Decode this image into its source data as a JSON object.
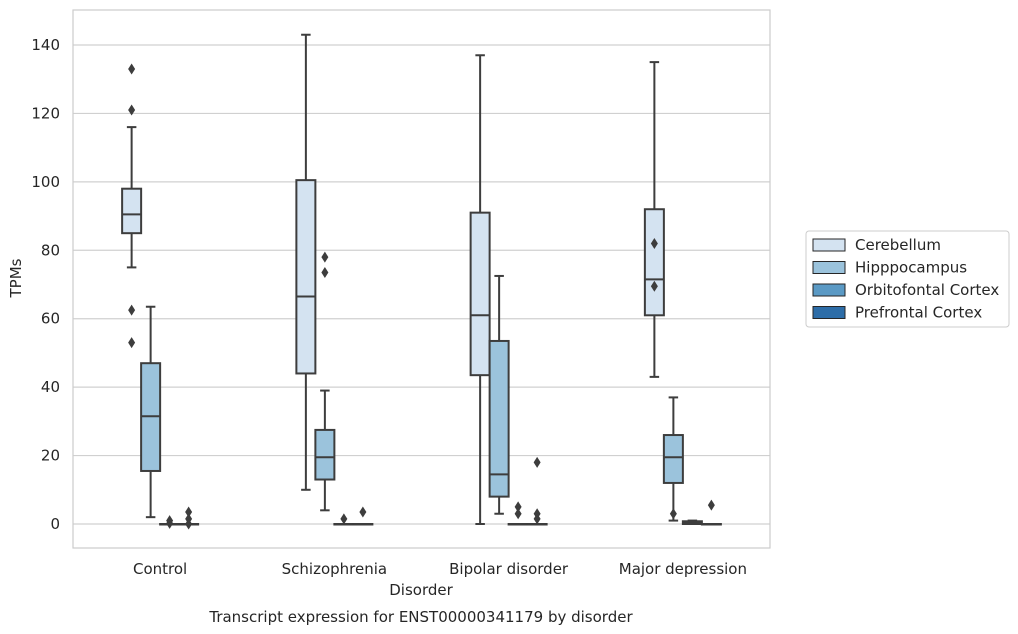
{
  "chart_data": {
    "type": "box",
    "title": "Transcript expression for ENST00000341179 by disorder",
    "xlabel": "Disorder",
    "ylabel": "TPMs",
    "categories": [
      "Control",
      "Schizophrenia",
      "Bipolar disorder",
      "Major depression"
    ],
    "ylim": [
      -7,
      151
    ],
    "yticks": [
      0,
      20,
      40,
      60,
      80,
      100,
      120,
      140
    ],
    "grid": "horizontal",
    "legend_position": "right",
    "series": [
      {
        "name": "Cerebellum",
        "color": "#d4e3f1",
        "boxes": [
          {
            "whislo": 75,
            "q1": 85,
            "med": 90.5,
            "q3": 98,
            "whishi": 116,
            "fliers": [
              121,
              133,
              62.5,
              53
            ]
          },
          {
            "whislo": 10,
            "q1": 44,
            "med": 66.5,
            "q3": 100.5,
            "whishi": 143,
            "fliers": []
          },
          {
            "whislo": 0,
            "q1": 43.5,
            "med": 61,
            "q3": 91,
            "whishi": 137,
            "fliers": []
          },
          {
            "whislo": 43,
            "q1": 61,
            "med": 71.5,
            "q3": 92,
            "whishi": 135,
            "fliers": [
              82,
              69.5
            ]
          }
        ]
      },
      {
        "name": "Hipppocampus",
        "color": "#9bc3dc",
        "boxes": [
          {
            "whislo": 2,
            "q1": 15.5,
            "med": 31.5,
            "q3": 47,
            "whishi": 63.5,
            "fliers": []
          },
          {
            "whislo": 4,
            "q1": 13,
            "med": 19.5,
            "q3": 27.5,
            "whishi": 39,
            "fliers": [
              78,
              73.5
            ]
          },
          {
            "whislo": 3,
            "q1": 8,
            "med": 14.5,
            "q3": 53.5,
            "whishi": 72.5,
            "fliers": []
          },
          {
            "whislo": 1,
            "q1": 12,
            "med": 19.5,
            "q3": 26,
            "whishi": 37,
            "fliers": [
              3
            ]
          }
        ]
      },
      {
        "name": "Orbitofontal Cortex",
        "color": "#5b9ac5",
        "boxes": [
          {
            "whislo": 0,
            "q1": 0,
            "med": 0,
            "q3": 0,
            "whishi": 0,
            "fliers": [
              1,
              0.2
            ]
          },
          {
            "whislo": 0,
            "q1": 0,
            "med": 0,
            "q3": 0,
            "whishi": 0,
            "fliers": [
              1.5
            ]
          },
          {
            "whislo": 0,
            "q1": 0,
            "med": 0,
            "q3": 0,
            "whishi": 0,
            "fliers": [
              5,
              3
            ]
          },
          {
            "whislo": 0,
            "q1": 0,
            "med": 0.3,
            "q3": 0.8,
            "whishi": 1,
            "fliers": []
          }
        ]
      },
      {
        "name": "Prefrontal Cortex",
        "color": "#2d6da8",
        "boxes": [
          {
            "whislo": 0,
            "q1": 0,
            "med": 0,
            "q3": 0,
            "whishi": 0,
            "fliers": [
              3.5,
              1.5,
              0
            ]
          },
          {
            "whislo": 0,
            "q1": 0,
            "med": 0,
            "q3": 0,
            "whishi": 0,
            "fliers": [
              3.5
            ]
          },
          {
            "whislo": 0,
            "q1": 0,
            "med": 0,
            "q3": 0,
            "whishi": 0,
            "fliers": [
              3,
              1.5,
              18
            ]
          },
          {
            "whislo": 0,
            "q1": 0,
            "med": 0,
            "q3": 0,
            "whishi": 0,
            "fliers": [
              5.5
            ]
          }
        ]
      }
    ]
  }
}
